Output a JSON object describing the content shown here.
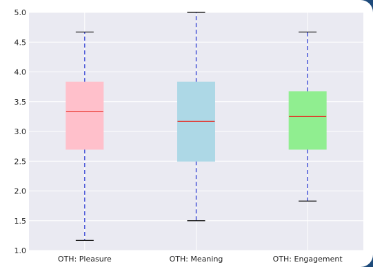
{
  "colors": {
    "page_background": "#1d4a7a",
    "plot_background": "#eaeaf2",
    "grid": "#ffffff",
    "whisker": "#1f2fd0",
    "median": "#e8271e",
    "cap": "#000000"
  },
  "chart_data": {
    "type": "box",
    "title": "",
    "xlabel": "",
    "ylabel": "",
    "ylim": [
      1.0,
      5.0
    ],
    "yticks": [
      "1.0",
      "1.5",
      "2.0",
      "2.5",
      "3.0",
      "3.5",
      "4.0",
      "4.5",
      "5.0"
    ],
    "ytick_values": [
      1.0,
      1.5,
      2.0,
      2.5,
      3.0,
      3.5,
      4.0,
      4.5,
      5.0
    ],
    "grid": true,
    "legend": "none",
    "categories": [
      "OTH: Pleasure",
      "OTH: Meaning",
      "OTH: Engagement"
    ],
    "boxes": [
      {
        "label": "OTH: Pleasure",
        "whisker_low": 1.17,
        "q1": 2.7,
        "median": 3.33,
        "q3": 3.83,
        "whisker_high": 4.67,
        "fill": "#ffc0cb"
      },
      {
        "label": "OTH: Meaning",
        "whisker_low": 1.5,
        "q1": 2.5,
        "median": 3.17,
        "q3": 3.83,
        "whisker_high": 5.0,
        "fill": "#add8e6"
      },
      {
        "label": "OTH: Engagement",
        "whisker_low": 1.83,
        "q1": 2.7,
        "median": 3.25,
        "q3": 3.67,
        "whisker_high": 4.67,
        "fill": "#90ee90"
      }
    ]
  }
}
